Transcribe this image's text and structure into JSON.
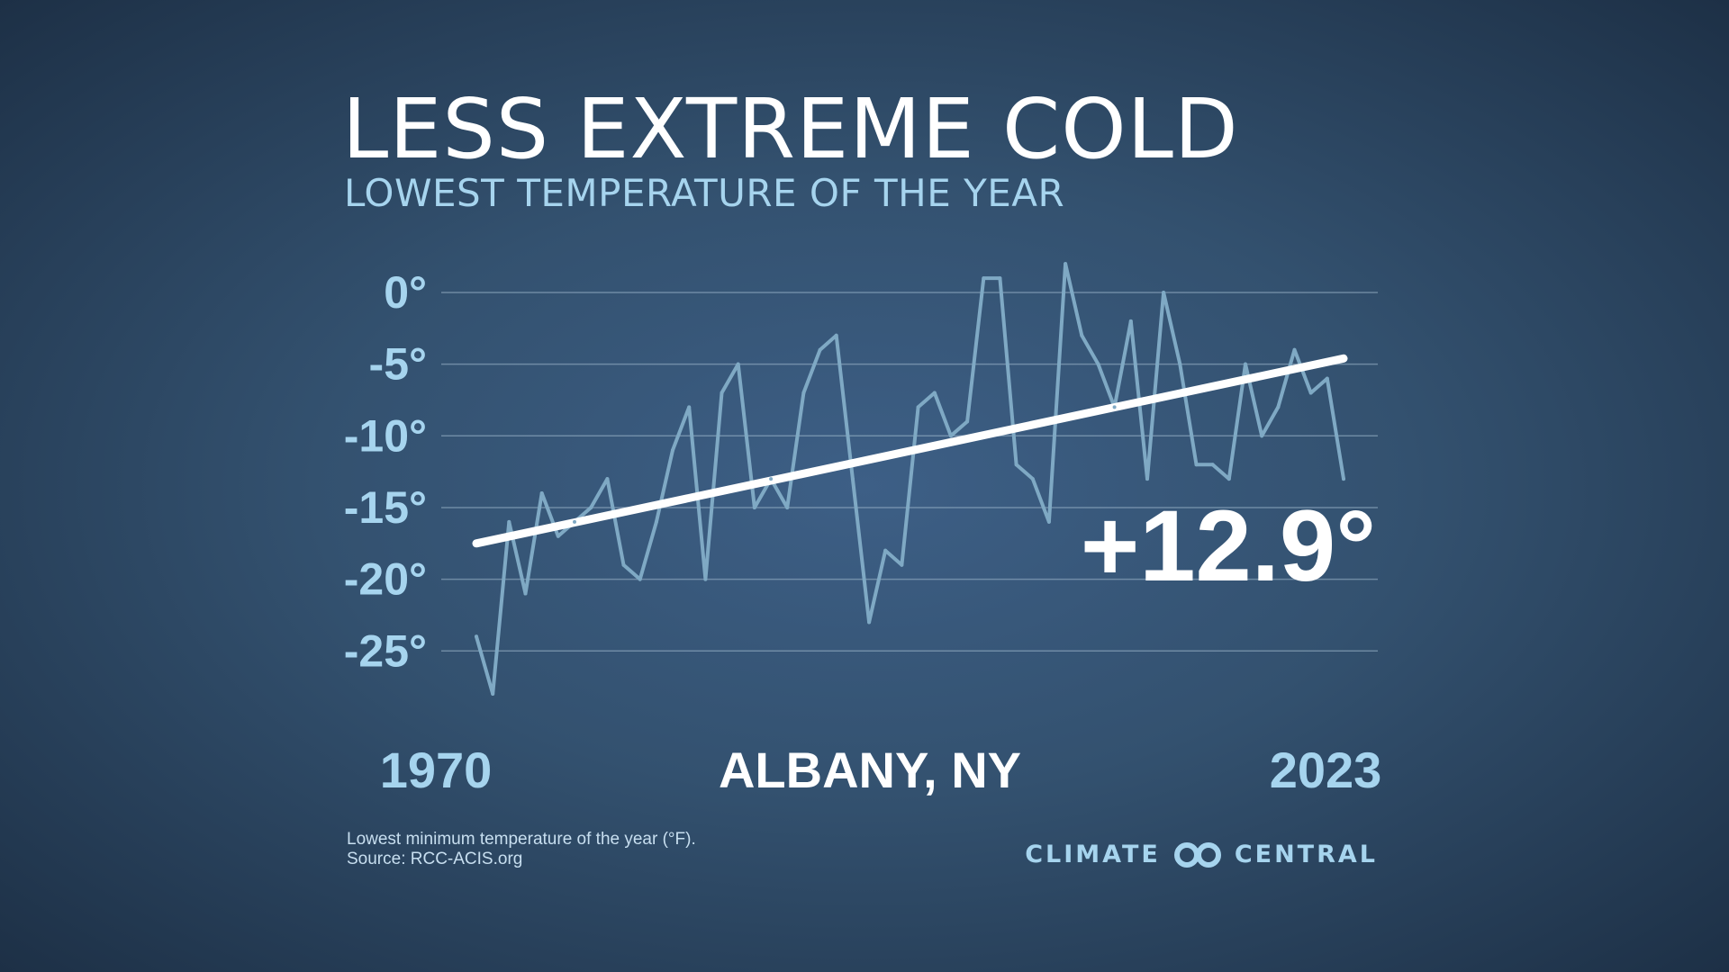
{
  "chart_data": {
    "type": "line",
    "title": "LESS EXTREME COLD",
    "subtitle": "LOWEST TEMPERATURE OF THE YEAR",
    "location": "ALBANY, NY",
    "x_start_label": "1970",
    "x_end_label": "2023",
    "change_annotation": "+12.9°",
    "ylim": [
      -28,
      2
    ],
    "y_ticks": [
      {
        "value": 0,
        "label": "0°"
      },
      {
        "value": -5,
        "label": "-5°"
      },
      {
        "value": -10,
        "label": "-10°"
      },
      {
        "value": -15,
        "label": "-15°"
      },
      {
        "value": -20,
        "label": "-20°"
      },
      {
        "value": -25,
        "label": "-25°"
      }
    ],
    "series": [
      {
        "name": "Lowest temperature of the year",
        "color": "#7fa9c4",
        "x": [
          1970,
          1971,
          1972,
          1973,
          1974,
          1975,
          1976,
          1977,
          1978,
          1979,
          1980,
          1981,
          1982,
          1983,
          1984,
          1985,
          1986,
          1987,
          1988,
          1989,
          1990,
          1991,
          1992,
          1993,
          1994,
          1995,
          1996,
          1997,
          1998,
          1999,
          2000,
          2001,
          2002,
          2003,
          2004,
          2005,
          2006,
          2007,
          2008,
          2009,
          2010,
          2011,
          2012,
          2013,
          2014,
          2015,
          2016,
          2017,
          2018,
          2019,
          2020,
          2021,
          2022,
          2023
        ],
        "values": [
          -24,
          -28,
          -16,
          -21,
          -14,
          -17,
          -16,
          -15,
          -13,
          -19,
          -20,
          -16,
          -11,
          -8,
          -20,
          -7,
          -5,
          -15,
          -13,
          -15,
          -7,
          -4,
          -3,
          -13,
          -23,
          -18,
          -19,
          -8,
          -7,
          -10,
          -9,
          1,
          1,
          -12,
          -13,
          -16,
          2,
          -3,
          -5,
          -8,
          -2,
          -13,
          0,
          -5,
          -12,
          -12,
          -13,
          -5,
          -10,
          -8,
          -4,
          -7,
          -6,
          -13
        ]
      },
      {
        "name": "Trend",
        "color": "#ffffff",
        "x": [
          1970,
          2023
        ],
        "values": [
          -17.5,
          -4.6
        ]
      }
    ],
    "footnote_line1": "Lowest minimum temperature of the year (°F).",
    "footnote_line2": "Source: RCC-ACIS.org"
  },
  "logo": {
    "left_text": "CLIMATE",
    "right_text": "CENTRAL",
    "accent_color": "#a6d4ee"
  }
}
